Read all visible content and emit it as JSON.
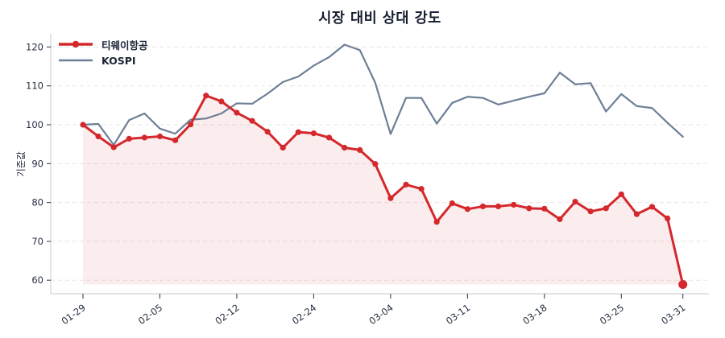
{
  "title": "시장 대비 상대 강도",
  "y_axis_label": "기준값",
  "legend": {
    "position": "upper-left",
    "items": [
      {
        "label": "티웨이항공",
        "color": "#d4282c",
        "marker": true
      },
      {
        "label": "KOSPI",
        "color": "#6d7f96",
        "marker": false
      }
    ]
  },
  "colors": {
    "tway_red": "#d4282c",
    "kospi_slate": "#6d7f96",
    "area_fill": "rgba(212,40,44,0.085)",
    "grid": "#e5e5e7",
    "spine": "#cfd3d8",
    "tick_mark": "#3a4354",
    "text_dark": "#151d2e",
    "tick_text": "#252e41",
    "background": "#ffffff"
  },
  "chart_data": {
    "type": "line",
    "title": "시장 대비 상대 강도",
    "xlabel": "",
    "ylabel": "기준값",
    "grid": "horizontal-dashed",
    "legend_position": "upper-left",
    "n_points": 40,
    "x": [
      0,
      1,
      2,
      3,
      4,
      5,
      6,
      7,
      8,
      9,
      10,
      11,
      12,
      13,
      14,
      15,
      16,
      17,
      18,
      19,
      20,
      21,
      22,
      23,
      24,
      25,
      26,
      27,
      28,
      29,
      30,
      31,
      32,
      33,
      34,
      35,
      36,
      37,
      38,
      39
    ],
    "x_ticks": [
      {
        "i": 0,
        "label": "01-29"
      },
      {
        "i": 5,
        "label": "02-05"
      },
      {
        "i": 10,
        "label": "02-12"
      },
      {
        "i": 15,
        "label": "02-24"
      },
      {
        "i": 20,
        "label": "03-04"
      },
      {
        "i": 25,
        "label": "03-11"
      },
      {
        "i": 30,
        "label": "03-18"
      },
      {
        "i": 35,
        "label": "03-25"
      },
      {
        "i": 39,
        "label": "03-31"
      }
    ],
    "y_ticks": [
      60,
      70,
      80,
      90,
      100,
      110,
      120
    ],
    "ylim": [
      56.5,
      123.5
    ],
    "series": [
      {
        "name": "티웨이항공",
        "color": "#d4282c",
        "line_width": 3,
        "markers": true,
        "marker_radius": 3.6,
        "emphasize_last_marker": true,
        "last_marker_radius": 5.5,
        "area_fill": true,
        "area_fill_color": "rgba(212,40,44,0.085)",
        "values": [
          100.0,
          97.0,
          94.2,
          96.4,
          96.7,
          97.0,
          96.0,
          100.1,
          107.5,
          106.0,
          103.1,
          101.0,
          98.2,
          94.1,
          98.1,
          97.8,
          96.7,
          94.1,
          93.5,
          89.9,
          81.1,
          84.6,
          83.5,
          75.0,
          79.8,
          78.3,
          79.0,
          79.0,
          79.4,
          78.5,
          78.4,
          75.7,
          80.2,
          77.7,
          78.5,
          82.1,
          77.0,
          78.9,
          75.9,
          58.9
        ]
      },
      {
        "name": "KOSPI",
        "color": "#6d7f96",
        "line_width": 2.2,
        "markers": false,
        "area_fill": false,
        "values": [
          100.0,
          100.2,
          94.8,
          101.2,
          102.9,
          99.0,
          97.7,
          101.3,
          101.6,
          102.9,
          105.5,
          105.4,
          108.0,
          111.0,
          112.4,
          115.2,
          117.4,
          120.6,
          119.2,
          110.8,
          97.6,
          106.9,
          106.9,
          100.3,
          105.6,
          107.2,
          106.9,
          105.2,
          106.2,
          107.2,
          108.1,
          113.4,
          110.4,
          110.7,
          103.4,
          107.9,
          104.8,
          104.3,
          100.5,
          96.9
        ]
      }
    ]
  }
}
